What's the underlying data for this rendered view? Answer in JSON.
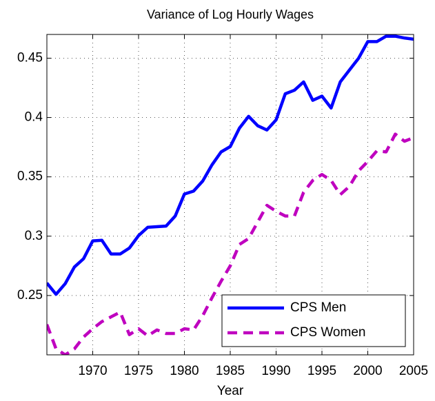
{
  "chart_data": {
    "type": "line",
    "title": "Variance of Log Hourly Wages",
    "x_label": "Year",
    "x": [
      1965,
      1966,
      1967,
      1968,
      1969,
      1970,
      1971,
      1972,
      1973,
      1974,
      1975,
      1976,
      1977,
      1978,
      1979,
      1980,
      1981,
      1982,
      1983,
      1984,
      1985,
      1986,
      1987,
      1988,
      1989,
      1990,
      1991,
      1992,
      1993,
      1994,
      1995,
      1996,
      1997,
      1998,
      1999,
      2000,
      2001,
      2002,
      2003,
      2004,
      2005
    ],
    "series": [
      {
        "name": "CPS Men",
        "color": "#0000ff",
        "dash": false,
        "values": [
          0.2605,
          0.251,
          0.26,
          0.274,
          0.281,
          0.296,
          0.2965,
          0.285,
          0.285,
          0.29,
          0.3005,
          0.3075,
          0.308,
          0.3085,
          0.317,
          0.3355,
          0.338,
          0.3465,
          0.36,
          0.371,
          0.3755,
          0.391,
          0.401,
          0.393,
          0.3895,
          0.398,
          0.42,
          0.423,
          0.43,
          0.4145,
          0.418,
          0.408,
          0.43,
          0.44,
          0.45,
          0.464,
          0.464,
          0.4685,
          0.4685,
          0.467,
          0.466
        ]
      },
      {
        "name": "CPS Women",
        "color": "#bf00bf",
        "dash": true,
        "values": [
          0.2256,
          0.205,
          0.2,
          0.205,
          0.215,
          0.222,
          0.228,
          0.232,
          0.236,
          0.217,
          0.222,
          0.216,
          0.221,
          0.218,
          0.218,
          0.222,
          0.221,
          0.233,
          0.248,
          0.262,
          0.275,
          0.293,
          0.298,
          0.312,
          0.326,
          0.321,
          0.317,
          0.317,
          0.337,
          0.347,
          0.352,
          0.347,
          0.335,
          0.342,
          0.355,
          0.363,
          0.372,
          0.371,
          0.386,
          0.38,
          0.383
        ]
      }
    ],
    "xlim": [
      1965,
      2005
    ],
    "xticks": [
      1970,
      1975,
      1980,
      1985,
      1990,
      1995,
      2000,
      2005
    ],
    "ylim": [
      0.2,
      0.47
    ],
    "yticks": [
      0.25,
      0.3,
      0.35,
      0.4,
      0.45
    ],
    "grid": true,
    "legend": "lower right"
  }
}
